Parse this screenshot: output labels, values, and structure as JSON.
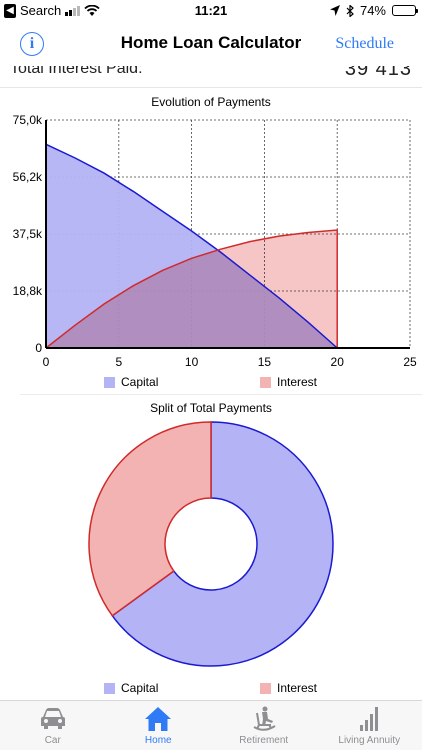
{
  "status_bar": {
    "back_label": "Search",
    "time": "11:21",
    "battery_text": "74%",
    "battery_level": 0.74
  },
  "nav": {
    "info_glyph": "i",
    "title": "Home Loan Calculator",
    "action_label": "Schedule"
  },
  "summary": {
    "label": "Total Interest Paid:",
    "value": "39 413"
  },
  "colors": {
    "capital_fill": "#b3b3f5",
    "capital_stroke": "#1a1ad0",
    "interest_fill": "#f3b3b3",
    "interest_stroke": "#d02a2a",
    "overlap": "#b88ab0",
    "accent": "#2f7bf6"
  },
  "chart_data": [
    {
      "type": "area",
      "title": "Evolution of Payments",
      "xlabel": "",
      "ylabel": "",
      "x_ticks": [
        "0",
        "5",
        "10",
        "15",
        "20",
        "25"
      ],
      "y_ticks": [
        "0",
        "18,8k",
        "37,5k",
        "56,2k",
        "75,0k"
      ],
      "xlim": [
        0,
        25
      ],
      "ylim": [
        0,
        75000
      ],
      "grid": true,
      "legend_position": "bottom",
      "x": [
        0,
        2,
        4,
        6,
        8,
        10,
        12,
        14,
        16,
        18,
        20
      ],
      "series": [
        {
          "name": "Capital",
          "values": [
            67000,
            62500,
            57500,
            51500,
            45000,
            38500,
            31500,
            24000,
            16500,
            8500,
            0
          ]
        },
        {
          "name": "Interest",
          "values": [
            0,
            7500,
            14500,
            20500,
            25500,
            29500,
            32500,
            35000,
            36800,
            38000,
            38800
          ]
        }
      ]
    },
    {
      "type": "pie",
      "title": "Split of Total Payments",
      "legend_position": "bottom",
      "categories": [
        "Capital",
        "Interest"
      ],
      "values": [
        65,
        35
      ]
    }
  ],
  "tabs": [
    {
      "label": "Car",
      "icon": "car-icon",
      "active": false
    },
    {
      "label": "Home",
      "icon": "house-icon",
      "active": true
    },
    {
      "label": "Retirement",
      "icon": "rocking-chair-icon",
      "active": false
    },
    {
      "label": "Living Annuity",
      "icon": "bar-chart-icon",
      "active": false
    }
  ]
}
